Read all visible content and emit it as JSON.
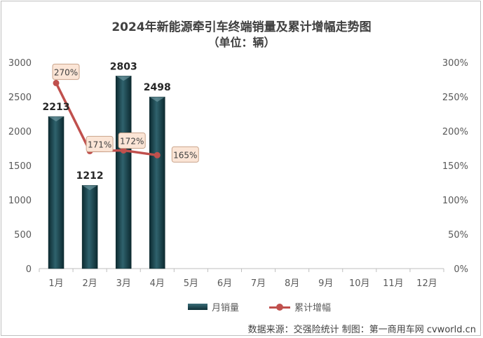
{
  "chart_data": {
    "type": "bar",
    "title": "2024年新能源牵引车终端销量及累计增幅走势图",
    "subtitle": "（单位：辆）",
    "categories": [
      "1月",
      "2月",
      "3月",
      "4月",
      "5月",
      "6月",
      "7月",
      "8月",
      "9月",
      "10月",
      "11月",
      "12月"
    ],
    "series": [
      {
        "name": "月销量",
        "type": "bar",
        "axis": "left",
        "values": [
          2213,
          1212,
          2803,
          2498,
          null,
          null,
          null,
          null,
          null,
          null,
          null,
          null
        ],
        "color": "#1f4e56"
      },
      {
        "name": "累计增幅",
        "type": "line",
        "axis": "right",
        "values": [
          270,
          171,
          172,
          165,
          null,
          null,
          null,
          null,
          null,
          null,
          null,
          null
        ],
        "color": "#c0504d"
      }
    ],
    "bar_labels": [
      "2213",
      "1212",
      "2803",
      "2498"
    ],
    "line_labels": [
      "270%",
      "171%",
      "172%",
      "165%"
    ],
    "ylim_left": [
      0,
      3000
    ],
    "yticks_left": [
      "0",
      "500",
      "1000",
      "1500",
      "2000",
      "2500",
      "3000"
    ],
    "ylim_right": [
      0,
      300
    ],
    "yticks_right": [
      "0%",
      "50%",
      "100%",
      "150%",
      "200%",
      "250%",
      "300%"
    ],
    "grid": false,
    "legend_position": "bottom"
  },
  "source_note": "数据来源：交强险统计  制图：第一商用车网 cvworld.cn",
  "colors": {
    "bar": "#1f4e56",
    "line": "#c0504d",
    "callout_fill": "#fbe5d6",
    "callout_border": "#c9a48b"
  }
}
